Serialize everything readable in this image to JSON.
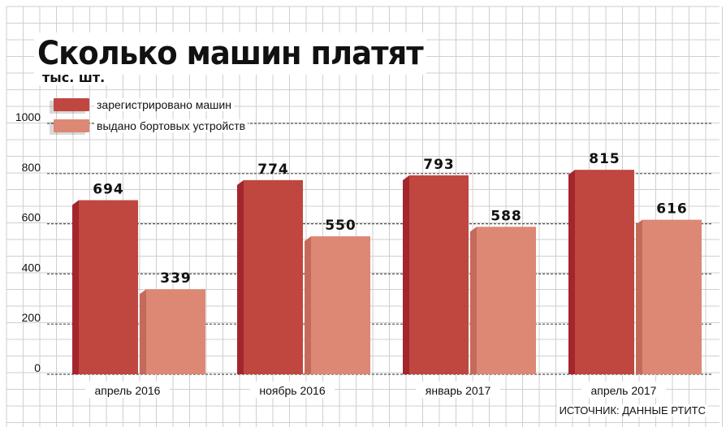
{
  "chart_data": {
    "type": "bar",
    "title": "Сколько машин платят",
    "subtitle": "тыс. шт.",
    "categories": [
      "апрель 2016",
      "ноябрь 2016",
      "январь 2017",
      "апрель 2017"
    ],
    "series": [
      {
        "name": "зарегистрировано машин",
        "values": [
          694,
          774,
          793,
          815
        ],
        "color": "#bf4740",
        "side_color": "#a3262c"
      },
      {
        "name": "выдано бортовых устройств",
        "values": [
          339,
          550,
          588,
          616
        ],
        "color": "#dc8875",
        "side_color": "#c56a5a"
      }
    ],
    "y_ticks": [
      0,
      200,
      400,
      600,
      800,
      1000
    ],
    "ylim": [
      0,
      1000
    ],
    "grid": true,
    "source": "ИСТОЧНИК: ДАННЫЕ РТИТС"
  }
}
